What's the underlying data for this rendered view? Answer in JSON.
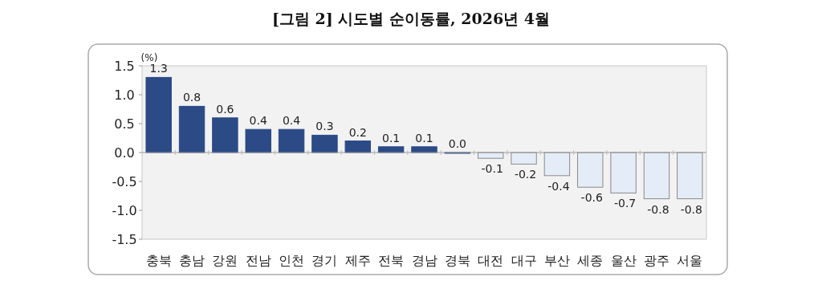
{
  "chart_data": {
    "type": "bar",
    "title": "[그림 2] 시도별 순이동률, 2026년 4월",
    "ylabel": "(%)",
    "categories": [
      "충북",
      "충남",
      "강원",
      "전남",
      "인천",
      "경기",
      "제주",
      "전북",
      "경남",
      "경북",
      "대전",
      "대구",
      "부산",
      "세종",
      "울산",
      "광주",
      "서울"
    ],
    "values": [
      1.3,
      0.8,
      0.6,
      0.4,
      0.4,
      0.3,
      0.2,
      0.1,
      0.1,
      0.0,
      -0.1,
      -0.2,
      -0.4,
      -0.6,
      -0.7,
      -0.8,
      -0.8
    ],
    "colors": [
      "#2b4a86",
      "#2b4a86",
      "#2b4a86",
      "#2b4a86",
      "#2b4a86",
      "#2b4a86",
      "#2b4a86",
      "#2b4a86",
      "#2b4a86",
      "#2b4a86",
      "#e4ecf8",
      "#e4ecf8",
      "#e4ecf8",
      "#e4ecf8",
      "#e4ecf8",
      "#e4ecf8",
      "#e4ecf8"
    ],
    "ylim": [
      -1.5,
      1.5
    ],
    "yticks": [
      1.5,
      {
        "value": 1,
        "label": "1.0"
      },
      0.5,
      {
        "value": 0,
        "label": "0.0"
      },
      -0.5,
      {
        "value": -1,
        "label": "-1.0"
      },
      -1.5
    ],
    "value_labels": [
      "1.3",
      "0.8",
      "0.6",
      "0.4",
      "0.4",
      "0.3",
      "0.2",
      "0.1",
      "0.1",
      "0.0",
      "-0.1",
      "-0.2",
      "-0.4",
      "-0.6",
      "-0.7",
      "-0.8",
      "-0.8"
    ]
  }
}
